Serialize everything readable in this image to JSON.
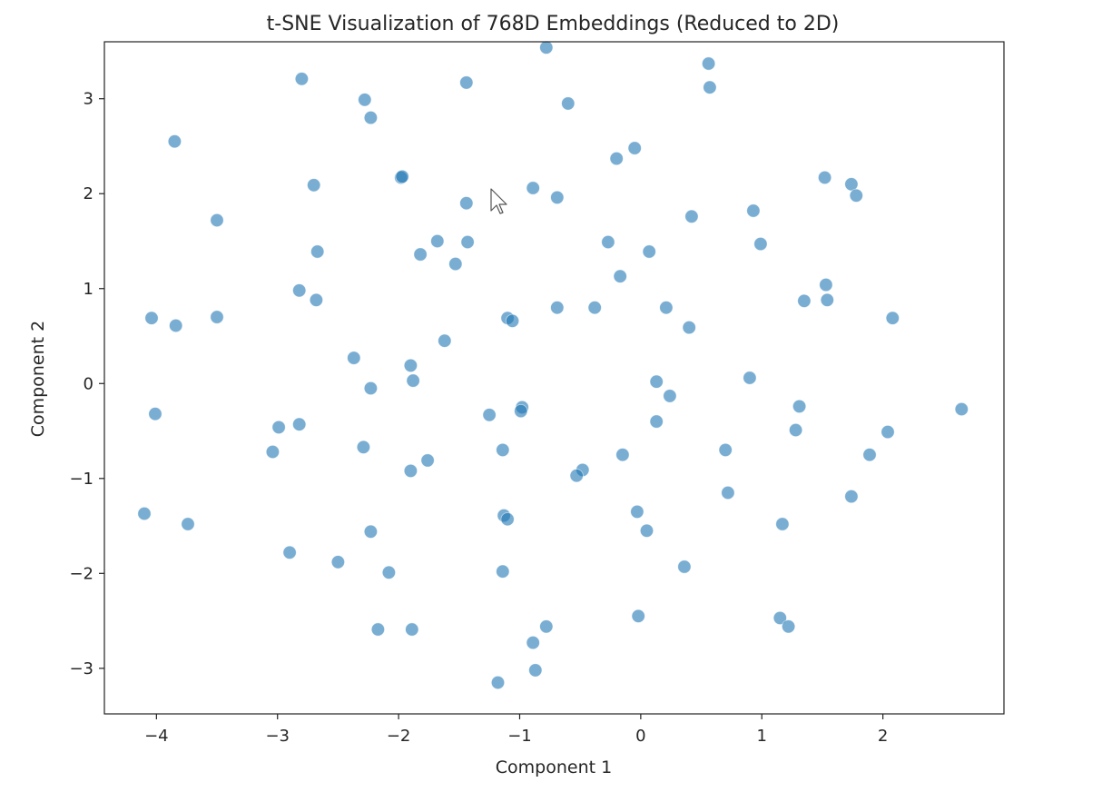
{
  "chart_data": {
    "type": "scatter",
    "title": "t-SNE Visualization of 768D Embeddings (Reduced to 2D)",
    "xlabel": "Component 1",
    "ylabel": "Component 2",
    "xlim": [
      -4.43,
      3.0
    ],
    "ylim": [
      -3.48,
      3.6
    ],
    "xticks": [
      -4,
      -3,
      -2,
      -1,
      0,
      1,
      2
    ],
    "xtick_labels": [
      "−4",
      "−3",
      "−2",
      "−1",
      "0",
      "1",
      "2"
    ],
    "yticks": [
      -3,
      -2,
      -1,
      0,
      1,
      2,
      3
    ],
    "ytick_labels": [
      "−3",
      "−2",
      "−1",
      "0",
      "1",
      "2",
      "3"
    ],
    "grid": false,
    "marker_color": "#1f77b4",
    "points": [
      {
        "x": -0.78,
        "y": 3.54
      },
      {
        "x": -2.8,
        "y": 3.21
      },
      {
        "x": -1.44,
        "y": 3.17
      },
      {
        "x": -2.28,
        "y": 2.99
      },
      {
        "x": -2.23,
        "y": 2.8
      },
      {
        "x": -0.6,
        "y": 2.95
      },
      {
        "x": 0.56,
        "y": 3.37
      },
      {
        "x": 0.57,
        "y": 3.12
      },
      {
        "x": -3.85,
        "y": 2.55
      },
      {
        "x": -1.98,
        "y": 2.17
      },
      {
        "x": -1.97,
        "y": 2.18
      },
      {
        "x": -2.7,
        "y": 2.09
      },
      {
        "x": -0.89,
        "y": 2.06
      },
      {
        "x": -0.69,
        "y": 1.96
      },
      {
        "x": -0.2,
        "y": 2.37
      },
      {
        "x": -0.05,
        "y": 2.48
      },
      {
        "x": 1.52,
        "y": 2.17
      },
      {
        "x": 1.74,
        "y": 2.1
      },
      {
        "x": 1.78,
        "y": 1.98
      },
      {
        "x": -1.44,
        "y": 1.9
      },
      {
        "x": -3.5,
        "y": 1.72
      },
      {
        "x": 0.42,
        "y": 1.76
      },
      {
        "x": 0.93,
        "y": 1.82
      },
      {
        "x": -1.68,
        "y": 1.5
      },
      {
        "x": -1.43,
        "y": 1.49
      },
      {
        "x": -0.27,
        "y": 1.49
      },
      {
        "x": 0.99,
        "y": 1.47
      },
      {
        "x": -2.67,
        "y": 1.39
      },
      {
        "x": -1.82,
        "y": 1.36
      },
      {
        "x": 0.07,
        "y": 1.39
      },
      {
        "x": -1.53,
        "y": 1.26
      },
      {
        "x": -0.17,
        "y": 1.13
      },
      {
        "x": 1.53,
        "y": 1.04
      },
      {
        "x": -2.82,
        "y": 0.98
      },
      {
        "x": -2.68,
        "y": 0.88
      },
      {
        "x": 1.35,
        "y": 0.87
      },
      {
        "x": 1.54,
        "y": 0.88
      },
      {
        "x": -0.69,
        "y": 0.8
      },
      {
        "x": -0.38,
        "y": 0.8
      },
      {
        "x": 0.21,
        "y": 0.8
      },
      {
        "x": -4.04,
        "y": 0.69
      },
      {
        "x": -3.84,
        "y": 0.61
      },
      {
        "x": -3.5,
        "y": 0.7
      },
      {
        "x": -1.1,
        "y": 0.69
      },
      {
        "x": -1.06,
        "y": 0.66
      },
      {
        "x": 0.4,
        "y": 0.59
      },
      {
        "x": 2.08,
        "y": 0.69
      },
      {
        "x": -1.62,
        "y": 0.45
      },
      {
        "x": -2.37,
        "y": 0.27
      },
      {
        "x": -1.9,
        "y": 0.19
      },
      {
        "x": -1.88,
        "y": 0.03
      },
      {
        "x": -2.23,
        "y": -0.05
      },
      {
        "x": 0.13,
        "y": 0.02
      },
      {
        "x": 0.9,
        "y": 0.06
      },
      {
        "x": 0.24,
        "y": -0.13
      },
      {
        "x": -4.01,
        "y": -0.32
      },
      {
        "x": -1.25,
        "y": -0.33
      },
      {
        "x": -0.98,
        "y": -0.25
      },
      {
        "x": -0.99,
        "y": -0.29
      },
      {
        "x": 0.13,
        "y": -0.4
      },
      {
        "x": 1.31,
        "y": -0.24
      },
      {
        "x": 2.65,
        "y": -0.27
      },
      {
        "x": -2.99,
        "y": -0.46
      },
      {
        "x": -2.82,
        "y": -0.43
      },
      {
        "x": 1.28,
        "y": -0.49
      },
      {
        "x": 2.04,
        "y": -0.51
      },
      {
        "x": -3.04,
        "y": -0.72
      },
      {
        "x": -2.29,
        "y": -0.67
      },
      {
        "x": -1.14,
        "y": -0.7
      },
      {
        "x": -1.76,
        "y": -0.81
      },
      {
        "x": -1.9,
        "y": -0.92
      },
      {
        "x": -0.15,
        "y": -0.75
      },
      {
        "x": 0.7,
        "y": -0.7
      },
      {
        "x": 1.89,
        "y": -0.75
      },
      {
        "x": -0.48,
        "y": -0.91
      },
      {
        "x": -0.53,
        "y": -0.97
      },
      {
        "x": 0.72,
        "y": -1.15
      },
      {
        "x": 1.74,
        "y": -1.19
      },
      {
        "x": -4.1,
        "y": -1.37
      },
      {
        "x": -3.74,
        "y": -1.48
      },
      {
        "x": -1.13,
        "y": -1.39
      },
      {
        "x": -1.1,
        "y": -1.43
      },
      {
        "x": -0.03,
        "y": -1.35
      },
      {
        "x": 0.05,
        "y": -1.55
      },
      {
        "x": 1.17,
        "y": -1.48
      },
      {
        "x": -2.23,
        "y": -1.56
      },
      {
        "x": -2.9,
        "y": -1.78
      },
      {
        "x": -2.5,
        "y": -1.88
      },
      {
        "x": -2.08,
        "y": -1.99
      },
      {
        "x": -1.14,
        "y": -1.98
      },
      {
        "x": 0.36,
        "y": -1.93
      },
      {
        "x": -2.17,
        "y": -2.59
      },
      {
        "x": -1.89,
        "y": -2.59
      },
      {
        "x": -0.78,
        "y": -2.56
      },
      {
        "x": -0.02,
        "y": -2.45
      },
      {
        "x": 1.15,
        "y": -2.47
      },
      {
        "x": 1.22,
        "y": -2.56
      },
      {
        "x": -0.89,
        "y": -2.73
      },
      {
        "x": -0.87,
        "y": -3.02
      },
      {
        "x": -1.18,
        "y": -3.15
      }
    ]
  }
}
